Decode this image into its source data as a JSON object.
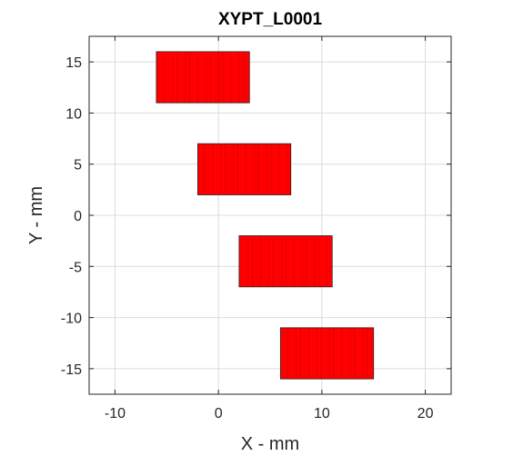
{
  "chart_data": {
    "type": "bar",
    "title": "XYPT_L0001",
    "xlabel": "X - mm",
    "ylabel": "Y - mm",
    "xlim": [
      -12.5,
      22.5
    ],
    "ylim": [
      -17.5,
      17.5
    ],
    "xticks": [
      -10,
      0,
      10,
      20
    ],
    "yticks": [
      15,
      10,
      5,
      0,
      -5,
      -10,
      -15
    ],
    "xtick_labels": [
      "-10",
      "0",
      "10",
      "20"
    ],
    "ytick_labels": [
      "15",
      "10",
      "5",
      "0",
      "-5",
      "-10",
      "-15"
    ],
    "grid": true,
    "rectangles": [
      {
        "x0": -6,
        "x1": 3,
        "y0": 11,
        "y1": 16
      },
      {
        "x0": -2,
        "x1": 7,
        "y0": 2,
        "y1": 7
      },
      {
        "x0": 2,
        "x1": 11,
        "y0": -7,
        "y1": -2
      },
      {
        "x0": 6,
        "x1": 15,
        "y0": -16,
        "y1": -11
      }
    ],
    "fill_color": "#ff0000",
    "stripe_color": "#cc0000"
  }
}
